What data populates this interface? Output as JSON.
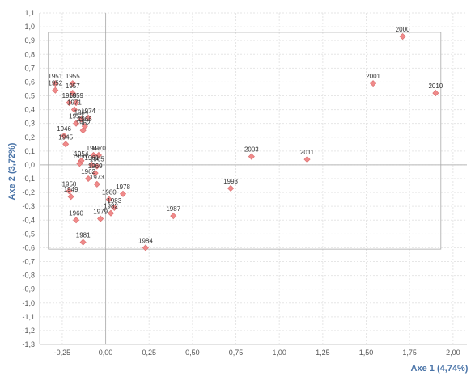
{
  "chart_data": {
    "type": "scatter",
    "xlabel": "Axe 1 (4,74%)",
    "ylabel": "Axe 2 (3,72%)",
    "xlim": [
      -0.38,
      2.08
    ],
    "ylim": [
      -1.3,
      1.1
    ],
    "xticks": [
      "-0,25",
      "0,00",
      "0,25",
      "0,50",
      "0,75",
      "1,00",
      "1,25",
      "1,50",
      "1,75",
      "2,00"
    ],
    "yticks": [
      "1,1",
      "1,0",
      "0,9",
      "0,8",
      "0,7",
      "0,6",
      "0,5",
      "0,4",
      "0,3",
      "0,2",
      "0,1",
      "0,0",
      "-0,1",
      "-0,2",
      "-0,3",
      "-0,4",
      "-0,5",
      "-0,6",
      "-0,7",
      "-0,8",
      "-0,9",
      "-1,0",
      "-1,1",
      "-1,2",
      "-1,3"
    ],
    "grid": true,
    "color": "#f08a8a",
    "points": [
      {
        "label": "2000",
        "x": 1.71,
        "y": 0.93
      },
      {
        "label": "2001",
        "x": 1.54,
        "y": 0.59
      },
      {
        "label": "2010",
        "x": 1.9,
        "y": 0.52
      },
      {
        "label": "2003",
        "x": 0.84,
        "y": 0.06
      },
      {
        "label": "2011",
        "x": 1.16,
        "y": 0.04
      },
      {
        "label": "1993",
        "x": 0.72,
        "y": -0.17
      },
      {
        "label": "1987",
        "x": 0.39,
        "y": -0.37
      },
      {
        "label": "1984",
        "x": 0.23,
        "y": -0.6
      },
      {
        "label": "1951",
        "x": -0.29,
        "y": 0.59
      },
      {
        "label": "1952",
        "x": -0.29,
        "y": 0.54
      },
      {
        "label": "1955",
        "x": -0.19,
        "y": 0.59
      },
      {
        "label": "1957",
        "x": -0.19,
        "y": 0.52
      },
      {
        "label": "1958",
        "x": -0.21,
        "y": 0.45
      },
      {
        "label": "1959",
        "x": -0.17,
        "y": 0.45
      },
      {
        "label": "1971",
        "x": -0.18,
        "y": 0.4
      },
      {
        "label": "1974",
        "x": -0.1,
        "y": 0.34
      },
      {
        "label": "1964",
        "x": -0.14,
        "y": 0.33
      },
      {
        "label": "1953",
        "x": -0.17,
        "y": 0.3
      },
      {
        "label": "1966",
        "x": -0.12,
        "y": 0.28
      },
      {
        "label": "1962",
        "x": -0.13,
        "y": 0.25
      },
      {
        "label": "1946",
        "x": -0.24,
        "y": 0.21
      },
      {
        "label": "1945",
        "x": -0.23,
        "y": 0.15
      },
      {
        "label": "1947",
        "x": -0.07,
        "y": 0.07
      },
      {
        "label": "1970",
        "x": -0.04,
        "y": 0.07
      },
      {
        "label": "1954",
        "x": -0.14,
        "y": 0.03
      },
      {
        "label": "1956",
        "x": -0.15,
        "y": 0.01
      },
      {
        "label": "1961",
        "x": -0.08,
        "y": 0.0
      },
      {
        "label": "1965",
        "x": -0.05,
        "y": -0.01
      },
      {
        "label": "1969",
        "x": -0.06,
        "y": -0.06
      },
      {
        "label": "1962b",
        "x": -0.1,
        "y": -0.1
      },
      {
        "label": "1973",
        "x": -0.05,
        "y": -0.14
      },
      {
        "label": "1950",
        "x": -0.21,
        "y": -0.19
      },
      {
        "label": "1949",
        "x": -0.2,
        "y": -0.23
      },
      {
        "label": "1978",
        "x": 0.1,
        "y": -0.21
      },
      {
        "label": "1980",
        "x": 0.02,
        "y": -0.25
      },
      {
        "label": "1983",
        "x": 0.05,
        "y": -0.31
      },
      {
        "label": "1982",
        "x": 0.03,
        "y": -0.35
      },
      {
        "label": "1979",
        "x": -0.03,
        "y": -0.39
      },
      {
        "label": "1960",
        "x": -0.17,
        "y": -0.4
      },
      {
        "label": "1981",
        "x": -0.13,
        "y": -0.56
      }
    ],
    "point_texts": [
      "2000",
      "2001",
      "2010",
      "2003",
      "2011",
      "1993",
      "1987",
      "1984",
      "1951",
      "1952",
      "1955",
      "1957",
      "1958",
      "1959",
      "1971",
      "1974",
      "1964",
      "1953",
      "1966",
      "1962",
      "1946",
      "1945",
      "1947",
      "1970",
      "1954",
      "1956",
      "1961",
      "1965",
      "1969",
      "1962",
      "1973",
      "1950",
      "1949",
      "1978",
      "1980",
      "1983",
      "1982",
      "1979",
      "1960",
      "1981"
    ],
    "frame": {
      "x": [
        -0.33,
        1.93
      ],
      "y": [
        -0.61,
        0.96
      ]
    }
  }
}
